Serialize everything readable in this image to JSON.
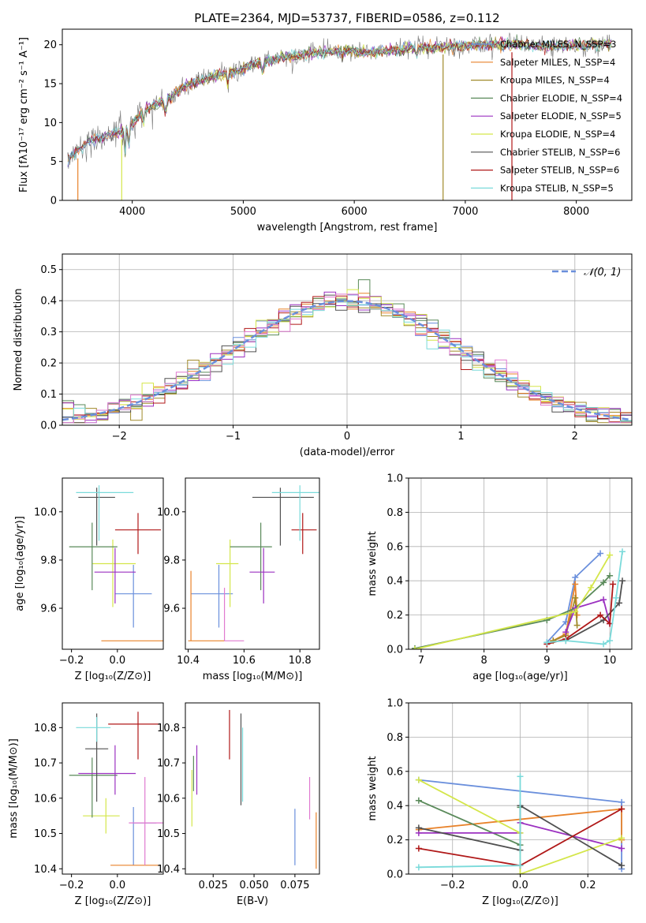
{
  "chart_data": [
    {
      "id": "spectrum",
      "type": "line",
      "title": "PLATE=2364, MJD=53737, FIBERID=0586, z=0.112",
      "xlabel": "wavelength [Angstrom, rest frame]",
      "ylabel": "Flux [fλ10⁻¹⁷ erg cm⁻² s⁻¹ A⁻¹]",
      "xlim": [
        3370,
        8500
      ],
      "ylim": [
        0,
        22
      ],
      "xticks": [
        4000,
        5000,
        6000,
        7000,
        8000
      ],
      "yticks": [
        0,
        5,
        10,
        15,
        20
      ],
      "legend": "top-right",
      "continuum": [
        [
          3420,
          5.3
        ],
        [
          3600,
          7.5
        ],
        [
          3800,
          8.5
        ],
        [
          3950,
          9.0
        ],
        [
          4100,
          11.5
        ],
        [
          4300,
          13.0
        ],
        [
          4500,
          14.8
        ],
        [
          4700,
          15.8
        ],
        [
          4900,
          16.5
        ],
        [
          5100,
          17.5
        ],
        [
          5300,
          18.2
        ],
        [
          5500,
          18.6
        ],
        [
          5700,
          19.0
        ],
        [
          5900,
          19.3
        ],
        [
          6100,
          19.0
        ],
        [
          6300,
          19.2
        ],
        [
          6500,
          19.5
        ],
        [
          6700,
          19.7
        ],
        [
          6900,
          19.8
        ],
        [
          7100,
          20.0
        ],
        [
          7300,
          20.1
        ],
        [
          7500,
          20.0
        ],
        [
          7700,
          19.8
        ],
        [
          7900,
          19.9
        ],
        [
          8100,
          20.0
        ],
        [
          8300,
          20.1
        ]
      ],
      "series": [
        {
          "name": "Chabrier MILES, N_SSP=3",
          "color": "#6a8fdc"
        },
        {
          "name": "Salpeter MILES, N_SSP=4",
          "color": "#e8822a"
        },
        {
          "name": "Kroupa MILES, N_SSP=4",
          "color": "#a08a2a"
        },
        {
          "name": "Chabrier ELODIE, N_SSP=4",
          "color": "#5a8a5a"
        },
        {
          "name": "Salpeter ELODIE, N_SSP=5",
          "color": "#9b30c0"
        },
        {
          "name": "Kroupa ELODIE, N_SSP=4",
          "color": "#d4e64a"
        },
        {
          "name": "Chabrier STELIB, N_SSP=6",
          "color": "#505050"
        },
        {
          "name": "Salpeter STELIB, N_SSP=6",
          "color": "#b01818"
        },
        {
          "name": "Kroupa STELIB, N_SSP=5",
          "color": "#7adada"
        }
      ]
    },
    {
      "id": "residual-hist",
      "type": "histogram",
      "xlabel": "(data-model)/error",
      "ylabel": "Normed distribution",
      "xlim": [
        -2.5,
        2.5
      ],
      "ylim": [
        0,
        0.55
      ],
      "xticks": [
        -2,
        -1,
        0,
        1,
        2
      ],
      "yticks": [
        0.0,
        0.1,
        0.2,
        0.3,
        0.4,
        0.5
      ],
      "grid": true,
      "legend": "top-right",
      "reference_curve": {
        "name": "𝒩(0, 1)",
        "color": "#6a8fdc",
        "style": "dashed"
      },
      "bin_width": 0.1
    },
    {
      "id": "age-vs-z",
      "type": "scatter",
      "xlabel": "Z [log₁₀(Z/Z⊙)]",
      "ylabel": "age  [log₁₀(age/yr)]",
      "xlim": [
        -0.24,
        0.2
      ],
      "ylim": [
        9.43,
        10.14
      ],
      "xticks": [
        -0.2,
        0.0
      ],
      "yticks": [
        9.6,
        9.8,
        10.0
      ],
      "points": [
        {
          "x": 0.07,
          "y": 9.66,
          "xerr": [
            0.08,
            0.08
          ],
          "yerr": [
            0.14,
            0.12
          ],
          "color": "#6a8fdc"
        },
        {
          "x": 0.07,
          "y": 9.465,
          "xerr": [
            0.14,
            0.13
          ],
          "yerr": [
            0,
            0
          ],
          "color": "#e8822a"
        },
        {
          "x": -0.02,
          "y": 9.785,
          "xerr": [
            0.09,
            0.1
          ],
          "yerr": [
            0.18,
            0.1
          ],
          "color": "#d4e64a"
        },
        {
          "x": -0.11,
          "y": 9.855,
          "xerr": [
            0.1,
            0.11
          ],
          "yerr": [
            0.18,
            0.1
          ],
          "color": "#5a8a5a"
        },
        {
          "x": -0.01,
          "y": 9.75,
          "xerr": [
            0.09,
            0.09
          ],
          "yerr": [
            0.13,
            0.1
          ],
          "color": "#9b30c0"
        },
        {
          "x": 0.09,
          "y": 9.925,
          "xerr": [
            0.1,
            0.1
          ],
          "yerr": [
            0.1,
            0.07
          ],
          "color": "#b01818"
        },
        {
          "x": -0.09,
          "y": 10.06,
          "xerr": [
            0.08,
            0.08
          ],
          "yerr": [
            0.2,
            0.04
          ],
          "color": "#505050"
        },
        {
          "x": -0.08,
          "y": 10.08,
          "xerr": [
            0.1,
            0.15
          ],
          "yerr": [
            0.2,
            0.03
          ],
          "color": "#7adada"
        }
      ]
    },
    {
      "id": "age-vs-mass",
      "type": "scatter",
      "xlabel": "mass [log₁₀(M/M⊙)]",
      "ylabel": "",
      "xlim": [
        10.39,
        10.87
      ],
      "ylim": [
        9.43,
        10.14
      ],
      "xticks": [
        10.4,
        10.6,
        10.8
      ],
      "yticks": [
        9.6,
        9.8,
        10.0
      ],
      "points": [
        {
          "x": 10.51,
          "y": 9.66,
          "xerr": [
            0.1,
            0.05
          ],
          "yerr": [
            0.14,
            0.12
          ],
          "color": "#6a8fdc"
        },
        {
          "x": 10.41,
          "y": 9.465,
          "xerr": [
            0.01,
            0.12
          ],
          "yerr": [
            0,
            0.29
          ],
          "color": "#e8822a"
        },
        {
          "x": 10.55,
          "y": 9.785,
          "xerr": [
            0.05,
            0.03
          ],
          "yerr": [
            0.18,
            0.1
          ],
          "color": "#d4e64a"
        },
        {
          "x": 10.66,
          "y": 9.855,
          "xerr": [
            0.11,
            0.04
          ],
          "yerr": [
            0.18,
            0.1
          ],
          "color": "#5a8a5a"
        },
        {
          "x": 10.67,
          "y": 9.75,
          "xerr": [
            0.05,
            0.04
          ],
          "yerr": [
            0.13,
            0.1
          ],
          "color": "#9b30c0"
        },
        {
          "x": 10.81,
          "y": 9.925,
          "xerr": [
            0.04,
            0.05
          ],
          "yerr": [
            0.1,
            0.07
          ],
          "color": "#b01818"
        },
        {
          "x": 10.73,
          "y": 10.06,
          "xerr": [
            0.1,
            0.12
          ],
          "yerr": [
            0.2,
            0.04
          ],
          "color": "#505050"
        },
        {
          "x": 10.8,
          "y": 10.08,
          "xerr": [
            0.1,
            0.07
          ],
          "yerr": [
            0.2,
            0.03
          ],
          "color": "#7adada"
        },
        {
          "x": 10.53,
          "y": 9.465,
          "xerr": [
            0,
            0.07
          ],
          "yerr": [
            0,
            0.22
          ],
          "color": "#e07ad0"
        }
      ]
    },
    {
      "id": "mass-weight-vs-age",
      "type": "line",
      "xlabel": "age  [log₁₀(age/yr)]",
      "ylabel": "mass weight",
      "xlim": [
        6.8,
        10.35
      ],
      "ylim": [
        0,
        1.0
      ],
      "xticks": [
        7,
        8,
        9,
        10
      ],
      "yticks": [
        0.0,
        0.2,
        0.4,
        0.6,
        0.8,
        1.0
      ],
      "grid": true,
      "series": [
        {
          "color": "#6a8fdc",
          "points": [
            [
              9.0,
              0.04
            ],
            [
              9.3,
              0.16
            ],
            [
              9.45,
              0.42
            ],
            [
              9.85,
              0.56
            ]
          ]
        },
        {
          "color": "#e8822a",
          "points": [
            [
              9.1,
              0.05
            ],
            [
              9.3,
              0.09
            ],
            [
              9.45,
              0.38
            ],
            [
              9.48,
              0.2
            ]
          ]
        },
        {
          "color": "#a08a2a",
          "points": [
            [
              9.1,
              0.05
            ],
            [
              9.3,
              0.08
            ],
            [
              9.45,
              0.3
            ],
            [
              9.48,
              0.14
            ]
          ]
        },
        {
          "color": "#5a8a5a",
          "points": [
            [
              6.9,
              0.005
            ],
            [
              9.0,
              0.17
            ],
            [
              9.45,
              0.24
            ],
            [
              9.9,
              0.39
            ],
            [
              10.0,
              0.43
            ]
          ]
        },
        {
          "color": "#9b30c0",
          "points": [
            [
              9.3,
              0.1
            ],
            [
              9.45,
              0.24
            ],
            [
              9.9,
              0.29
            ],
            [
              10.0,
              0.15
            ]
          ]
        },
        {
          "color": "#d4e64a",
          "points": [
            [
              6.9,
              0.0
            ],
            [
              9.45,
              0.22
            ],
            [
              9.7,
              0.36
            ],
            [
              10.0,
              0.55
            ]
          ]
        },
        {
          "color": "#505050",
          "points": [
            [
              9.3,
              0.05
            ],
            [
              9.9,
              0.17
            ],
            [
              10.15,
              0.27
            ],
            [
              10.2,
              0.4
            ]
          ]
        },
        {
          "color": "#b01818",
          "points": [
            [
              9.0,
              0.03
            ],
            [
              9.3,
              0.06
            ],
            [
              9.85,
              0.2
            ],
            [
              10.0,
              0.15
            ],
            [
              10.05,
              0.38
            ]
          ]
        },
        {
          "color": "#7adada",
          "points": [
            [
              9.0,
              0.04
            ],
            [
              9.3,
              0.05
            ],
            [
              9.9,
              0.03
            ],
            [
              10.0,
              0.05
            ],
            [
              10.1,
              0.3
            ],
            [
              10.2,
              0.57
            ]
          ]
        }
      ]
    },
    {
      "id": "mass-vs-z",
      "type": "scatter",
      "xlabel": "Z [log₁₀(Z/Z⊙)]",
      "ylabel": "mass [log₁₀(M/M⊙)]",
      "xlim": [
        -0.24,
        0.2
      ],
      "ylim": [
        10.385,
        10.87
      ],
      "xticks": [
        -0.2,
        0.0
      ],
      "yticks": [
        10.4,
        10.5,
        10.6,
        10.7,
        10.8
      ],
      "points": [
        {
          "x": 0.07,
          "y": 10.53,
          "xerr": [
            0,
            0.1
          ],
          "yerr": [
            0.12,
            0.045
          ],
          "color": "#6a8fdc"
        },
        {
          "x": 0.12,
          "y": 10.41,
          "xerr": [
            0.15,
            0.07
          ],
          "yerr": [
            0,
            0
          ],
          "color": "#e8822a"
        },
        {
          "x": -0.05,
          "y": 10.55,
          "xerr": [
            0.1,
            0.06
          ],
          "yerr": [
            0.05,
            0.05
          ],
          "color": "#d4e64a"
        },
        {
          "x": -0.11,
          "y": 10.665,
          "xerr": [
            0.1,
            0.11
          ],
          "yerr": [
            0.12,
            0.05
          ],
          "color": "#5a8a5a"
        },
        {
          "x": -0.01,
          "y": 10.67,
          "xerr": [
            0.16,
            0.09
          ],
          "yerr": [
            0.06,
            0.08
          ],
          "color": "#9b30c0"
        },
        {
          "x": 0.09,
          "y": 10.81,
          "xerr": [
            0.13,
            0.1
          ],
          "yerr": [
            0.1,
            0.035
          ],
          "color": "#b01818"
        },
        {
          "x": -0.09,
          "y": 10.74,
          "xerr": [
            0.05,
            0.05
          ],
          "yerr": [
            0.15,
            0.1
          ],
          "color": "#505050"
        },
        {
          "x": -0.09,
          "y": 10.8,
          "xerr": [
            0.09,
            0.06
          ],
          "yerr": [
            0.04,
            0.03
          ],
          "color": "#7adada"
        },
        {
          "x": 0.12,
          "y": 10.53,
          "xerr": [
            0.07,
            0.08
          ],
          "yerr": [
            0.12,
            0.13
          ],
          "color": "#e07ad0"
        }
      ]
    },
    {
      "id": "mass-vs-ebv",
      "type": "scatter",
      "xlabel": "E(B-V)",
      "ylabel": "",
      "xlim": [
        0.008,
        0.09
      ],
      "ylim": [
        10.385,
        10.87
      ],
      "xticks": [
        0.025,
        0.05,
        0.075
      ],
      "yticks": [
        10.4,
        10.5,
        10.6,
        10.7,
        10.8
      ],
      "points": [
        {
          "x": 0.012,
          "y": 10.6,
          "xerr": [
            0,
            0
          ],
          "yerr": [
            0.08,
            0.08
          ],
          "color": "#d4e64a"
        },
        {
          "x": 0.013,
          "y": 10.67,
          "xerr": [
            0,
            0
          ],
          "yerr": [
            0.05,
            0.05
          ],
          "color": "#5a8a5a"
        },
        {
          "x": 0.015,
          "y": 10.68,
          "xerr": [
            0,
            0
          ],
          "yerr": [
            0.07,
            0.07
          ],
          "color": "#9b30c0"
        },
        {
          "x": 0.035,
          "y": 10.78,
          "xerr": [
            0,
            0
          ],
          "yerr": [
            0.07,
            0.07
          ],
          "color": "#b01818"
        },
        {
          "x": 0.042,
          "y": 10.71,
          "xerr": [
            0,
            0
          ],
          "yerr": [
            0.13,
            0.13
          ],
          "color": "#505050"
        },
        {
          "x": 0.043,
          "y": 10.7,
          "xerr": [
            0,
            0
          ],
          "yerr": [
            0.11,
            0.1
          ],
          "color": "#7adada"
        },
        {
          "x": 0.075,
          "y": 10.49,
          "xerr": [
            0,
            0
          ],
          "yerr": [
            0.08,
            0.08
          ],
          "color": "#6a8fdc"
        },
        {
          "x": 0.084,
          "y": 10.6,
          "xerr": [
            0,
            0
          ],
          "yerr": [
            0.06,
            0.06
          ],
          "color": "#e07ad0"
        },
        {
          "x": 0.088,
          "y": 10.48,
          "xerr": [
            0,
            0
          ],
          "yerr": [
            0.08,
            0.08
          ],
          "color": "#e8822a"
        }
      ]
    },
    {
      "id": "mass-weight-vs-z",
      "type": "line",
      "xlabel": "Z [log₁₀(Z/Z⊙)]",
      "ylabel": "mass weight",
      "xlim": [
        -0.33,
        0.33
      ],
      "ylim": [
        0,
        1.0
      ],
      "xticks": [
        -0.2,
        0.0,
        0.2
      ],
      "yticks": [
        0.0,
        0.2,
        0.4,
        0.6,
        0.8,
        1.0
      ],
      "grid": true,
      "series": [
        {
          "color": "#6a8fdc",
          "points": [
            [
              -0.3,
              0.55
            ],
            [
              0.3,
              0.42
            ],
            [
              0.3,
              0.03
            ]
          ]
        },
        {
          "color": "#e8822a",
          "points": [
            [
              -0.3,
              0.26
            ],
            [
              0.3,
              0.38
            ],
            [
              0.3,
              0.2
            ]
          ]
        },
        {
          "color": "#5a8a5a",
          "points": [
            [
              -0.3,
              0.43
            ],
            [
              0.0,
              0.17
            ],
            [
              0.0,
              0.39
            ]
          ]
        },
        {
          "color": "#9b30c0",
          "points": [
            [
              -0.3,
              0.24
            ],
            [
              0.0,
              0.24
            ],
            [
              0.0,
              0.3
            ],
            [
              0.3,
              0.15
            ]
          ]
        },
        {
          "color": "#d4e64a",
          "points": [
            [
              -0.3,
              0.55
            ],
            [
              0.0,
              0.24
            ],
            [
              0.0,
              0.0
            ],
            [
              0.3,
              0.21
            ]
          ]
        },
        {
          "color": "#505050",
          "points": [
            [
              -0.3,
              0.27
            ],
            [
              0.0,
              0.14
            ],
            [
              0.0,
              0.4
            ],
            [
              0.3,
              0.05
            ]
          ]
        },
        {
          "color": "#b01818",
          "points": [
            [
              -0.3,
              0.15
            ],
            [
              0.0,
              0.05
            ],
            [
              0.3,
              0.38
            ]
          ]
        },
        {
          "color": "#7adada",
          "points": [
            [
              -0.3,
              0.04
            ],
            [
              0.0,
              0.05
            ],
            [
              0.0,
              0.57
            ]
          ]
        }
      ]
    }
  ]
}
